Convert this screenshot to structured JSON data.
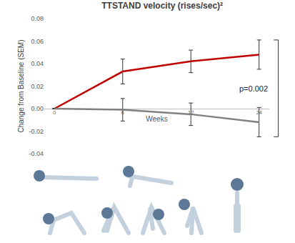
{
  "chart_data": {
    "type": "line",
    "title": "TTSTAND velocity (rises/sec)²",
    "x_label": "Weeks",
    "y_label": "Change from Baseline (SEM)",
    "categories": [
      "0",
      "6",
      "12",
      "24"
    ],
    "series": [
      {
        "color": "#c00000",
        "values": [
          0,
          0.033,
          0.042,
          0.048
        ],
        "errors": [
          0,
          0.011,
          0.01,
          0.013
        ]
      },
      {
        "color": "#808080",
        "values": [
          0,
          -0.001,
          -0.005,
          -0.012
        ],
        "errors": [
          0,
          0.01,
          0.01,
          0.013
        ]
      }
    ],
    "ylim": [
      -0.04,
      0.08
    ],
    "yticks": [
      {
        "value": -0.04,
        "label": "-0.04"
      },
      {
        "value": -0.02,
        "label": "-0.02"
      },
      {
        "value": 0,
        "label": "0.00"
      },
      {
        "value": 0.02,
        "label": "0.02"
      },
      {
        "value": 0.04,
        "label": "0.04"
      },
      {
        "value": 0.06,
        "label": "0.06"
      },
      {
        "value": 0.08,
        "label": "0.08"
      }
    ],
    "grid": false,
    "annotations": [
      {
        "text": "p=0.002"
      }
    ]
  }
}
